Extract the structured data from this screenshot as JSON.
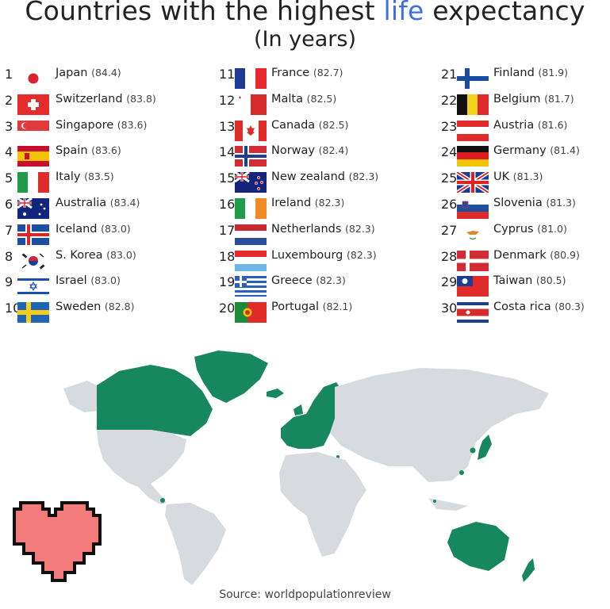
{
  "title": {
    "before": "Countries with the highest ",
    "highlight": "life",
    "after": " expectancy"
  },
  "subtitle": "(In years)",
  "colors": {
    "highlight": "#3f6fd8",
    "map_land": "#d7dbdf",
    "map_highlight": "#16875e",
    "heart_fill": "#f47b7b",
    "heart_outline": "#111111"
  },
  "columns": [
    [
      {
        "rank": "1",
        "country": "Japan",
        "value": "(84.4)",
        "flag": "japan-flag-icon"
      },
      {
        "rank": "2",
        "country": "Switzerland",
        "value": "(83.8)",
        "flag": "switzerland-flag-icon"
      },
      {
        "rank": "3",
        "country": "Singapore",
        "value": "(83.6)",
        "flag": "singapore-flag-icon"
      },
      {
        "rank": "4",
        "country": "Spain",
        "value": "(83.6)",
        "flag": "spain-flag-icon"
      },
      {
        "rank": "5",
        "country": "Italy",
        "value": "(83.5)",
        "flag": "italy-flag-icon"
      },
      {
        "rank": "6",
        "country": "Australia",
        "value": "(83.4)",
        "flag": "australia-flag-icon"
      },
      {
        "rank": "7",
        "country": "Iceland",
        "value": "(83.0)",
        "flag": "iceland-flag-icon"
      },
      {
        "rank": "8",
        "country": "S. Korea",
        "value": "(83.0)",
        "flag": "south-korea-flag-icon"
      },
      {
        "rank": "9",
        "country": "Israel",
        "value": "(83.0)",
        "flag": "israel-flag-icon"
      },
      {
        "rank": "10",
        "country": "Sweden",
        "value": "(82.8)",
        "flag": "sweden-flag-icon"
      }
    ],
    [
      {
        "rank": "11",
        "country": "France",
        "value": "(82.7)",
        "flag": "france-flag-icon"
      },
      {
        "rank": "12",
        "country": "Malta",
        "value": "(82.5)",
        "flag": "malta-flag-icon"
      },
      {
        "rank": "13",
        "country": "Canada",
        "value": "(82.5)",
        "flag": "canada-flag-icon"
      },
      {
        "rank": "14",
        "country": "Norway",
        "value": "(82.4)",
        "flag": "norway-flag-icon"
      },
      {
        "rank": "15",
        "country": "New zealand",
        "value": "(82.3)",
        "flag": "new-zealand-flag-icon"
      },
      {
        "rank": "16",
        "country": "Ireland",
        "value": "(82.3)",
        "flag": "ireland-flag-icon"
      },
      {
        "rank": "17",
        "country": "Netherlands",
        "value": "(82.3)",
        "flag": "netherlands-flag-icon"
      },
      {
        "rank": "18",
        "country": "Luxembourg",
        "value": "(82.3)",
        "flag": "luxembourg-flag-icon"
      },
      {
        "rank": "19",
        "country": "Greece",
        "value": "(82.3)",
        "flag": "greece-flag-icon"
      },
      {
        "rank": "20",
        "country": "Portugal",
        "value": "(82.1)",
        "flag": "portugal-flag-icon"
      }
    ],
    [
      {
        "rank": "21",
        "country": "Finland",
        "value": "(81.9)",
        "flag": "finland-flag-icon"
      },
      {
        "rank": "22",
        "country": "Belgium",
        "value": "(81.7)",
        "flag": "belgium-flag-icon"
      },
      {
        "rank": "23",
        "country": "Austria",
        "value": "(81.6)",
        "flag": "austria-flag-icon"
      },
      {
        "rank": "24",
        "country": "Germany",
        "value": "(81.4)",
        "flag": "germany-flag-icon"
      },
      {
        "rank": "25",
        "country": "UK",
        "value": "(81.3)",
        "flag": "uk-flag-icon"
      },
      {
        "rank": "26",
        "country": "Slovenia",
        "value": "(81.3)",
        "flag": "slovenia-flag-icon"
      },
      {
        "rank": "27",
        "country": "Cyprus",
        "value": "(81.0)",
        "flag": "cyprus-flag-icon"
      },
      {
        "rank": "28",
        "country": "Denmark",
        "value": "(80.9)",
        "flag": "denmark-flag-icon"
      },
      {
        "rank": "29",
        "country": "Taiwan",
        "value": "(80.5)",
        "flag": "taiwan-flag-icon"
      },
      {
        "rank": "30",
        "country": "Costa rica",
        "value": "(80.3)",
        "flag": "costa-rica-flag-icon"
      }
    ]
  ],
  "map_icon": "world-map-icon",
  "heart_icon": "pixel-heart-icon",
  "source": "Source: worldpopulationreview"
}
